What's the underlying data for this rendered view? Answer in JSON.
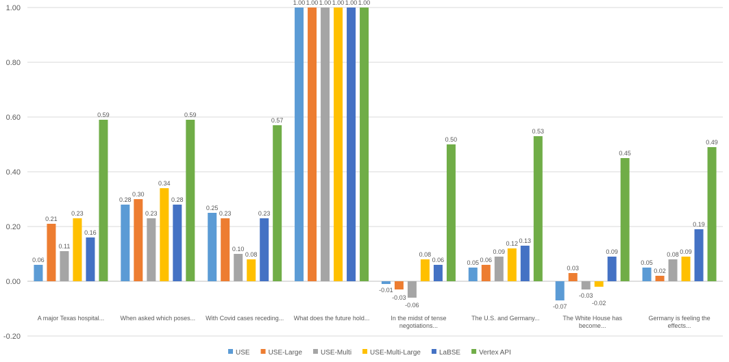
{
  "chart_data": {
    "type": "bar",
    "title": "",
    "xlabel": "",
    "ylabel": "",
    "ylim": [
      -0.2,
      1.0
    ],
    "yticks": [
      "-0.20",
      "0.00",
      "0.20",
      "0.40",
      "0.60",
      "0.80",
      "1.00"
    ],
    "grid": true,
    "legend_position": "bottom",
    "categories": [
      "A major Texas hospital...",
      "When asked which poses...",
      "With Covid cases receding...",
      "What does the future hold...",
      "In the midst of tense negotiations...",
      "The U.S. and Germany...",
      "The White House has become...",
      "Germany is feeling the effects..."
    ],
    "series": [
      {
        "name": "USE",
        "color": "#5B9BD5",
        "values": [
          0.06,
          0.28,
          0.25,
          1.0,
          -0.01,
          0.05,
          -0.07,
          0.05
        ]
      },
      {
        "name": "USE-Large",
        "color": "#ED7D31",
        "values": [
          0.21,
          0.3,
          0.23,
          1.0,
          -0.03,
          0.06,
          0.03,
          0.02
        ]
      },
      {
        "name": "USE-Multi",
        "color": "#A5A5A5",
        "values": [
          0.11,
          0.23,
          0.1,
          1.0,
          -0.06,
          0.09,
          -0.03,
          0.08
        ]
      },
      {
        "name": "USE-Multi-Large",
        "color": "#FFC000",
        "values": [
          0.23,
          0.34,
          0.08,
          1.0,
          0.08,
          0.12,
          -0.02,
          0.09
        ]
      },
      {
        "name": "LaBSE",
        "color": "#4472C4",
        "values": [
          0.16,
          0.28,
          0.23,
          1.0,
          0.06,
          0.13,
          0.09,
          0.19
        ]
      },
      {
        "name": "Vertex API",
        "color": "#70AD47",
        "values": [
          0.59,
          0.59,
          0.57,
          1.0,
          0.5,
          0.53,
          0.45,
          0.49
        ]
      }
    ]
  }
}
